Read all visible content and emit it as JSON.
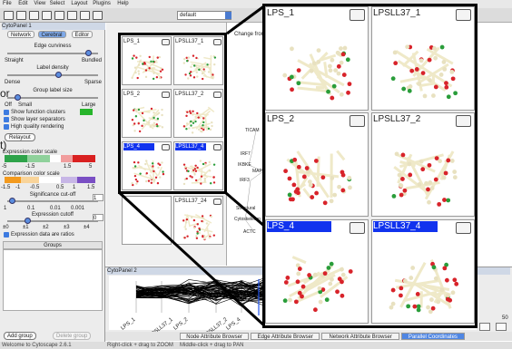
{
  "menu": [
    "File",
    "Edit",
    "View",
    "Select",
    "Layout",
    "Plugins",
    "Help"
  ],
  "toolbar": {
    "style": "default"
  },
  "left_panel": {
    "title": "CytoPanel 1",
    "tabs": [
      "Network",
      "Cerebral",
      "Editor"
    ],
    "edge_curviness": {
      "label": "Edge curviness",
      "min": "Straight",
      "max": "Bundled"
    },
    "label_density": {
      "label": "Label density",
      "min": "Dense",
      "max": "Sparse"
    },
    "group_label_size": {
      "label": "Group label size",
      "options": [
        "Off",
        "Small",
        "Large"
      ]
    },
    "checkboxes": [
      "Show function clusters",
      "Show layer separators",
      "High quality rendering"
    ],
    "relayout": "Relayout",
    "expression_scale": {
      "label": "Expression color scale",
      "ticks": [
        "-5",
        "-1.5",
        "1.5",
        "5"
      ]
    },
    "comparison_scale": {
      "label": "Comparison color scale",
      "ticks": [
        "-1.5",
        "-1",
        "-0.5",
        "0.5",
        "1",
        "1.5"
      ]
    },
    "significance": {
      "label": "Significance cut-off",
      "ticks": [
        "1",
        "0.1",
        "0.01",
        "0.001"
      ],
      "input": "1"
    },
    "expression_cutoff": {
      "label": "Expression cutoff",
      "ticks": [
        "±0",
        "±1",
        "±2",
        "±3",
        "±4"
      ],
      "input": "0"
    },
    "ratios": "Expression data are ratios",
    "groups": "Groups",
    "buttons": [
      "Add group",
      "Delete group"
    ]
  },
  "overlay_text": [
    "or",
    "t)"
  ],
  "thumbnails": [
    "LPS_1",
    "LPSLL37_1",
    "LPS_2",
    "LPSLL37_2",
    "LPS_4",
    "LPSLL37_4",
    "LPSLL37_24"
  ],
  "network_view": {
    "title": "Change from",
    "nodes": [
      "TICAM",
      "IRF7",
      "IKBKE",
      "MAPK",
      "IRF3",
      "Structural",
      "Cytoskeleton",
      "ACTC"
    ]
  },
  "zoom_panels": [
    "LPS_1",
    "LPSLL37_1",
    "LPS_2",
    "LPSLL37_2",
    "LPS_4",
    "LPSLL37_4"
  ],
  "bottom_panel": {
    "title": "CytoPanel 2",
    "axis_labels": [
      "LPS_1",
      "LPSLL37_1",
      "LPS_2",
      "LPSLL37_2",
      "LPS_4"
    ],
    "side_value": "50"
  },
  "attribute_tabs": [
    "Node Attribute Browser",
    "Edge Attribute Browser",
    "Network Attribute Browser",
    "Parallel Coordinates"
  ],
  "status": [
    "Welcome to Cytoscape 2.6.1",
    "Right-click + drag to ZOOM",
    "Middle-click + drag to PAN"
  ]
}
